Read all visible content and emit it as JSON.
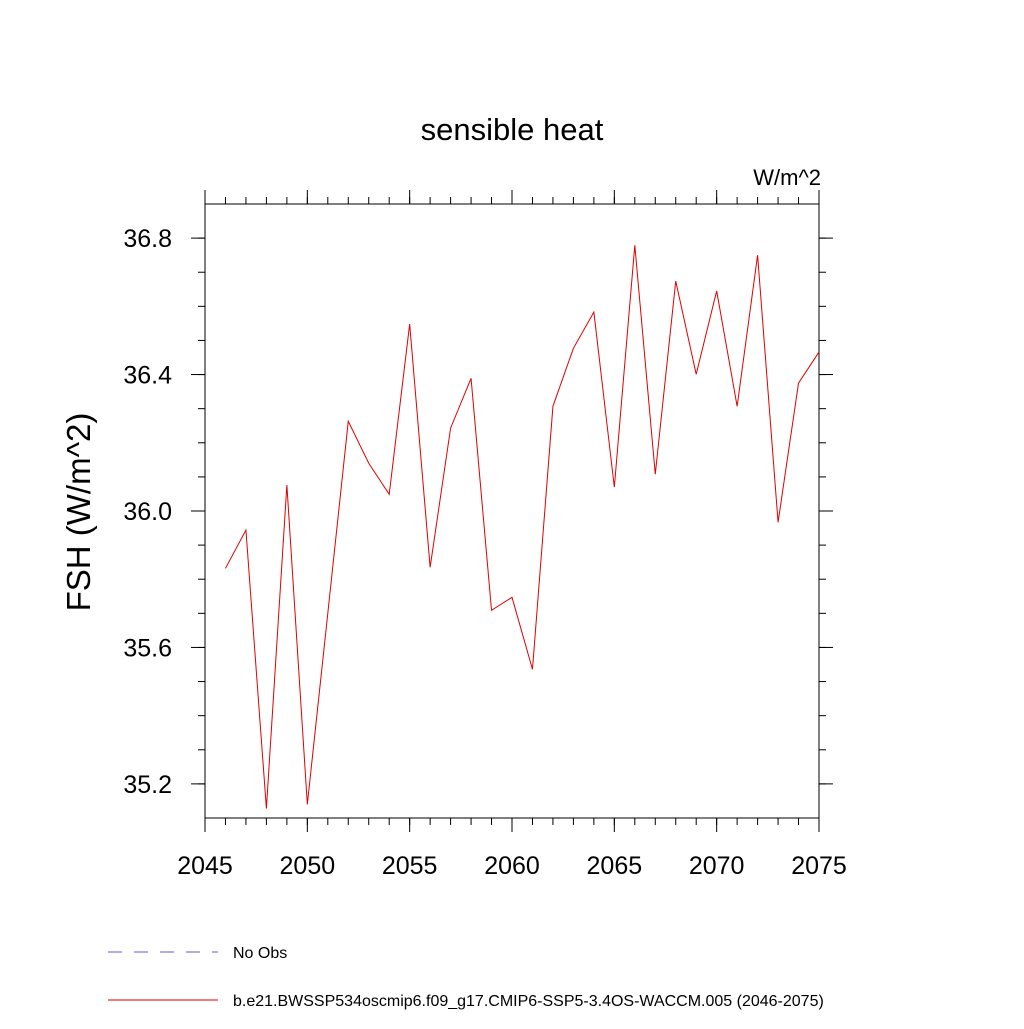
{
  "chart_data": {
    "type": "line",
    "title": "sensible heat",
    "units": "W/m^2",
    "ylabel": "FSH  (W/m^2)",
    "x": [
      2046,
      2047,
      2048,
      2049,
      2050,
      2051,
      2052,
      2053,
      2054,
      2055,
      2056,
      2057,
      2058,
      2059,
      2060,
      2061,
      2062,
      2063,
      2064,
      2065,
      2066,
      2067,
      2068,
      2069,
      2070,
      2071,
      2072,
      2073,
      2074,
      2075
    ],
    "series": [
      {
        "name": "No Obs",
        "color": "#6a5acd",
        "dashed": true,
        "values": [
          null,
          null,
          null,
          null,
          null,
          null,
          null,
          null,
          null,
          null,
          null,
          null,
          null,
          null,
          null,
          null,
          null,
          null,
          null,
          null,
          null,
          null,
          null,
          null,
          null,
          null,
          null,
          null,
          null,
          null
        ]
      },
      {
        "name": "b.e21.BWSSP534oscmip6.f09_g17.CMIP6-SSP5-3.4OS-WACCM.005 (2046-2075)",
        "color": "#e00000",
        "dashed": false,
        "values": [
          35.832,
          35.944,
          35.128,
          36.076,
          35.14,
          35.7,
          36.263,
          36.14,
          36.049,
          36.548,
          35.835,
          36.243,
          36.389,
          35.709,
          35.747,
          35.536,
          36.307,
          36.477,
          36.583,
          36.07,
          36.779,
          36.108,
          36.674,
          36.401,
          36.645,
          36.307,
          36.75,
          35.967,
          36.375,
          36.466
        ]
      }
    ],
    "xlim": [
      2045,
      2075
    ],
    "xticks": [
      2045,
      2050,
      2055,
      2060,
      2065,
      2070,
      2075
    ],
    "ylim": [
      35.1,
      36.9
    ],
    "yticks": [
      {
        "value": 35.2,
        "label": "35.2"
      },
      {
        "value": 35.6,
        "label": "35.6"
      },
      {
        "value": 36.0,
        "label": "36.0"
      },
      {
        "value": 36.4,
        "label": "36.4"
      },
      {
        "value": 36.8,
        "label": "36.8"
      }
    ]
  }
}
